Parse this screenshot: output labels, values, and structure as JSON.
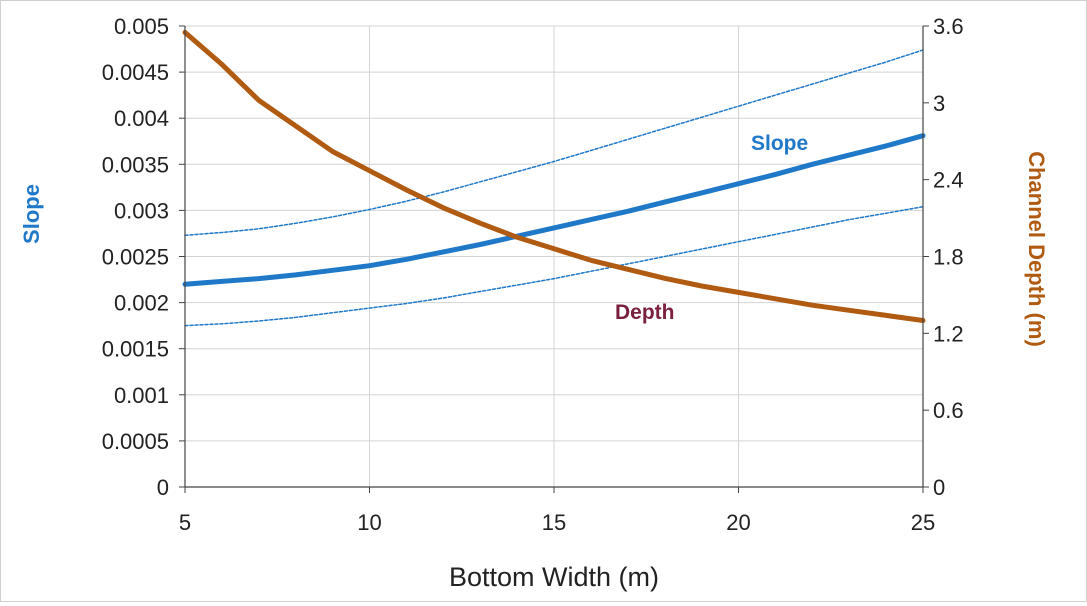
{
  "chart_data": {
    "type": "line",
    "xlabel": "Bottom Width (m)",
    "ylabel": "Slope",
    "y2label": "Channel Depth (m)",
    "xlim": [
      5,
      25
    ],
    "ylim": [
      0,
      0.005
    ],
    "y2lim": [
      0,
      3.6
    ],
    "grid": true,
    "x_ticks": [
      "5",
      "10",
      "15",
      "20",
      "25"
    ],
    "y_ticks": [
      "0",
      "0.0005",
      "0.001",
      "0.0015",
      "0.002",
      "0.0025",
      "0.003",
      "0.0035",
      "0.004",
      "0.0045",
      "0.005"
    ],
    "y2_ticks": [
      "0",
      "0.6",
      "1.2",
      "1.8",
      "2.4",
      "3",
      "3.6"
    ],
    "x": [
      5,
      6,
      7,
      8,
      9,
      10,
      11,
      12,
      13,
      14,
      15,
      16,
      17,
      18,
      19,
      20,
      21,
      22,
      23,
      24,
      25
    ],
    "series": [
      {
        "label": "Slope",
        "axis": "left",
        "style": "solid",
        "color": "#1f78c8",
        "values": [
          0.0022,
          0.00223,
          0.00226,
          0.0023,
          0.00235,
          0.0024,
          0.00247,
          0.00255,
          0.00263,
          0.00272,
          0.00281,
          0.0029,
          0.00299,
          0.00309,
          0.00319,
          0.00329,
          0.00339,
          0.0035,
          0.0036,
          0.0037,
          0.00381
        ]
      },
      {
        "axis": "left",
        "style": "dashed",
        "color": "#1f78c8",
        "values": [
          0.00273,
          0.00276,
          0.0028,
          0.00286,
          0.00293,
          0.00301,
          0.0031,
          0.0032,
          0.00331,
          0.00342,
          0.00353,
          0.00365,
          0.00377,
          0.00389,
          0.00401,
          0.00413,
          0.00425,
          0.00437,
          0.00449,
          0.00461,
          0.00474
        ]
      },
      {
        "axis": "left",
        "style": "dashed",
        "color": "#1f78c8",
        "values": [
          0.00175,
          0.00177,
          0.0018,
          0.00184,
          0.00189,
          0.00194,
          0.00199,
          0.00205,
          0.00212,
          0.00219,
          0.00226,
          0.00234,
          0.00242,
          0.0025,
          0.00258,
          0.00266,
          0.00274,
          0.00282,
          0.0029,
          0.00297,
          0.00304
        ]
      },
      {
        "label": "Depth",
        "axis": "right",
        "style": "solid",
        "color": "#b05a12",
        "values": [
          3.55,
          3.3,
          3.02,
          2.82,
          2.62,
          2.47,
          2.32,
          2.18,
          2.06,
          1.95,
          1.86,
          1.77,
          1.7,
          1.63,
          1.57,
          1.52,
          1.47,
          1.42,
          1.38,
          1.34,
          1.3
        ]
      }
    ],
    "annotations": [
      {
        "text": "Slope",
        "color": "#1f78c8"
      },
      {
        "text": "Depth",
        "color": "#7a1f3d"
      }
    ]
  }
}
